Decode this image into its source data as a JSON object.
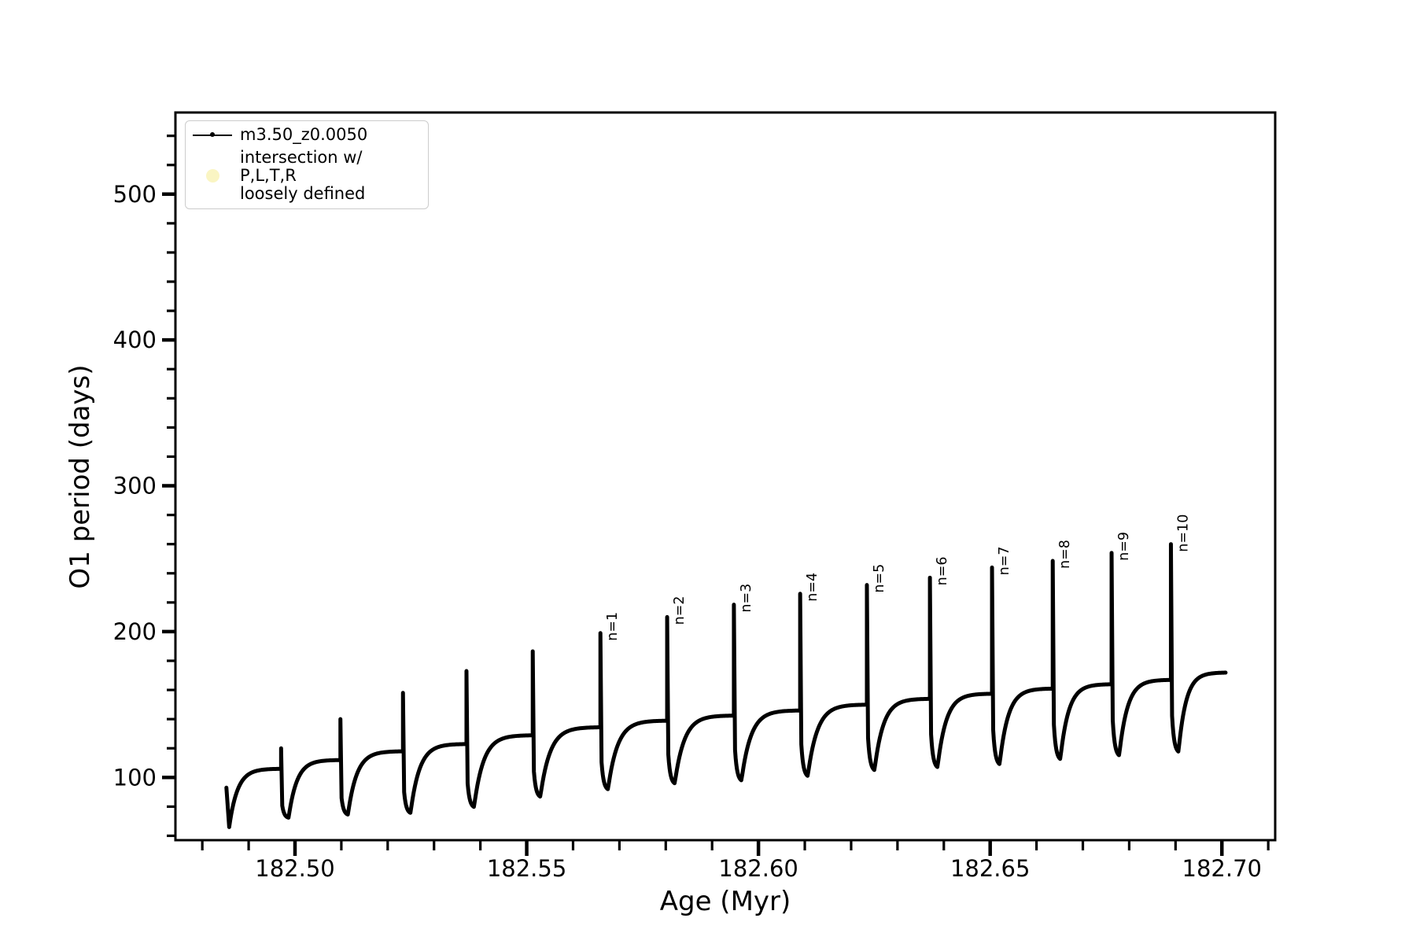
{
  "figure": {
    "background": "#ffffff",
    "accent_color": "#000000"
  },
  "legend": {
    "items": [
      {
        "marker": "line-with-dot",
        "color": "#000000",
        "label": "m3.50_z0.0050"
      },
      {
        "marker": "filled-circle",
        "color": "#faf5c3",
        "label_lines": [
          "intersection w/ P,L,T,R",
          "loosely defined"
        ]
      }
    ]
  },
  "chart_data": {
    "type": "line",
    "title": "",
    "xlabel": "Age (Myr)",
    "ylabel": "O1 period (days)",
    "series_name": "m3.50_z0.0050",
    "line_color": "#000000",
    "marker_style": "dense-dot-line",
    "grid": false,
    "legend_position": "upper-left",
    "xlim": [
      182.4742,
      182.7115
    ],
    "ylim": [
      57,
      556
    ],
    "xticks_major": [
      {
        "value": 182.5,
        "label": "182.50"
      },
      {
        "value": 182.55,
        "label": "182.55"
      },
      {
        "value": 182.6,
        "label": "182.60"
      },
      {
        "value": 182.65,
        "label": "182.65"
      },
      {
        "value": 182.7,
        "label": "182.70"
      }
    ],
    "xticks_minor": [
      182.48,
      182.49,
      182.51,
      182.52,
      182.53,
      182.54,
      182.56,
      182.57,
      182.58,
      182.59,
      182.61,
      182.62,
      182.63,
      182.64,
      182.66,
      182.67,
      182.68,
      182.69,
      182.71
    ],
    "yticks_major": [
      {
        "value": 100,
        "label": "100"
      },
      {
        "value": 200,
        "label": "200"
      },
      {
        "value": 300,
        "label": "300"
      },
      {
        "value": 400,
        "label": "400"
      },
      {
        "value": 500,
        "label": "500"
      }
    ],
    "yticks_minor": [
      60,
      80,
      120,
      140,
      160,
      180,
      220,
      240,
      260,
      280,
      320,
      340,
      360,
      380,
      420,
      440,
      460,
      480,
      520,
      540
    ],
    "curve_start": {
      "age": 182.4852,
      "value": 93,
      "dip_age": 182.4858,
      "dip_value": 66
    },
    "cycles": [
      {
        "age": 182.497,
        "spike_top": 120,
        "plateau_before": 106,
        "dip_after": 72,
        "label": null
      },
      {
        "age": 182.5098,
        "spike_top": 140,
        "plateau_before": 112,
        "dip_after": 74,
        "label": null
      },
      {
        "age": 182.5233,
        "spike_top": 158,
        "plateau_before": 118,
        "dip_after": 75,
        "label": null
      },
      {
        "age": 182.537,
        "spike_top": 173,
        "plateau_before": 123,
        "dip_after": 79,
        "label": null
      },
      {
        "age": 182.5513,
        "spike_top": 186.5,
        "plateau_before": 129,
        "dip_after": 86,
        "label": null
      },
      {
        "age": 182.5659,
        "spike_top": 199,
        "plateau_before": 134.5,
        "dip_after": 91,
        "label": "n=1"
      },
      {
        "age": 182.5803,
        "spike_top": 210,
        "plateau_before": 139,
        "dip_after": 95,
        "label": "n=2"
      },
      {
        "age": 182.5947,
        "spike_top": 218.5,
        "plateau_before": 142.5,
        "dip_after": 97,
        "label": "n=3"
      },
      {
        "age": 182.609,
        "spike_top": 226,
        "plateau_before": 146,
        "dip_after": 100,
        "label": "n=4"
      },
      {
        "age": 182.6234,
        "spike_top": 232,
        "plateau_before": 150,
        "dip_after": 104,
        "label": "n=5"
      },
      {
        "age": 182.637,
        "spike_top": 237,
        "plateau_before": 154,
        "dip_after": 106,
        "label": "n=6"
      },
      {
        "age": 182.6504,
        "spike_top": 244,
        "plateau_before": 157.5,
        "dip_after": 108,
        "label": "n=7"
      },
      {
        "age": 182.6635,
        "spike_top": 248.5,
        "plateau_before": 161,
        "dip_after": 111.5,
        "label": "n=8"
      },
      {
        "age": 182.6762,
        "spike_top": 254,
        "plateau_before": 164,
        "dip_after": 114,
        "label": "n=9"
      },
      {
        "age": 182.689,
        "spike_top": 260,
        "plateau_before": 167,
        "dip_after": 116.5,
        "label": "n=10"
      }
    ],
    "curve_end": {
      "age": 182.7008,
      "value": 171,
      "asymptote": 172
    }
  }
}
